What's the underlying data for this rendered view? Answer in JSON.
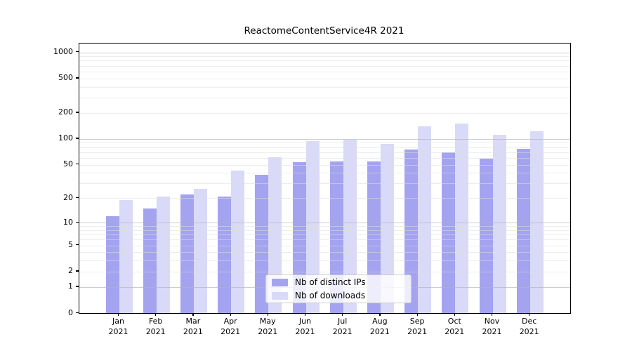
{
  "figure": {
    "title": "ReactomeContentService4R 2021"
  },
  "chart_data": {
    "type": "bar",
    "title": "ReactomeContentService4R 2021",
    "categories": [
      "Jan 2021",
      "Feb 2021",
      "Mar 2021",
      "Apr 2021",
      "May 2021",
      "Jun 2021",
      "Jul 2021",
      "Aug 2021",
      "Sep 2021",
      "Oct 2021",
      "Nov 2021",
      "Dec 2021"
    ],
    "series": [
      {
        "name": "Nb of distinct IPs",
        "color": "#a3a3f0",
        "values": [
          12,
          15,
          22,
          21,
          38,
          54,
          55,
          55,
          75,
          70,
          59,
          77
        ]
      },
      {
        "name": "Nb of downloads",
        "color": "#d9d9f8",
        "values": [
          19,
          21,
          26,
          43,
          61,
          94,
          98,
          87,
          140,
          150,
          112,
          122
        ]
      }
    ],
    "y_axis": {
      "scale": "log1p",
      "tick_values": [
        0,
        1,
        2,
        5,
        10,
        20,
        50,
        100,
        200,
        500,
        1000
      ],
      "range": [
        0,
        1000
      ],
      "minor_gridlines": [
        2,
        3,
        4,
        5,
        6,
        7,
        8,
        9,
        20,
        30,
        40,
        50,
        60,
        70,
        80,
        90,
        200,
        300,
        400,
        500,
        600,
        700,
        800,
        900
      ],
      "major_gridlines": [
        1,
        10,
        100,
        1000
      ]
    },
    "legend": {
      "position": "lower center",
      "entries": [
        "Nb of distinct IPs",
        "Nb of downloads"
      ]
    },
    "grid": "both"
  }
}
